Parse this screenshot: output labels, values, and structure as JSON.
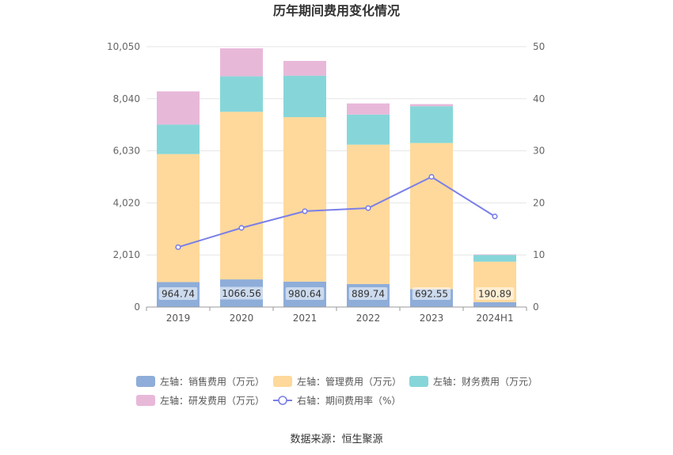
{
  "chart_data": {
    "type": "bar",
    "title": "历年期间费用变化情况",
    "categories": [
      "2019",
      "2020",
      "2021",
      "2022",
      "2023",
      "2024H1"
    ],
    "left_axis": {
      "min": 0,
      "max": 10050,
      "ticks": [
        "0",
        "2,010",
        "4,020",
        "6,030",
        "8,040",
        "10,050"
      ]
    },
    "right_axis": {
      "min": 0,
      "max": 50,
      "ticks": [
        "0",
        "10",
        "20",
        "30",
        "40",
        "50"
      ]
    },
    "series": [
      {
        "name": "左轴：销售费用（万元）",
        "type": "bar",
        "axis": "left",
        "color": "#8eadd9",
        "values": [
          964.74,
          1066.56,
          980.64,
          889.74,
          692.55,
          190.89
        ],
        "labels": [
          "964.74",
          "1066.56",
          "980.64",
          "889.74",
          "692.55",
          "190.89"
        ]
      },
      {
        "name": "左轴：管理费用（万元）",
        "type": "bar",
        "axis": "left",
        "color": "#fed99b",
        "values": [
          4940,
          6470,
          6350,
          5380,
          5640,
          1560
        ]
      },
      {
        "name": "左轴：财务费用（万元）",
        "type": "bar",
        "axis": "left",
        "color": "#86d6d9",
        "values": [
          1140,
          1370,
          1600,
          1160,
          1420,
          260
        ]
      },
      {
        "name": "左轴：研发费用（万元）",
        "type": "bar",
        "axis": "left",
        "color": "#e8b8d9",
        "values": [
          1280,
          1080,
          570,
          430,
          80,
          20
        ]
      },
      {
        "name": "右轴：期间费用率（%）",
        "type": "line",
        "axis": "right",
        "color": "#7b7fe8",
        "values": [
          11.5,
          15.2,
          18.4,
          19.0,
          25.0,
          17.4
        ]
      }
    ],
    "source": "数据来源：恒生聚源"
  }
}
